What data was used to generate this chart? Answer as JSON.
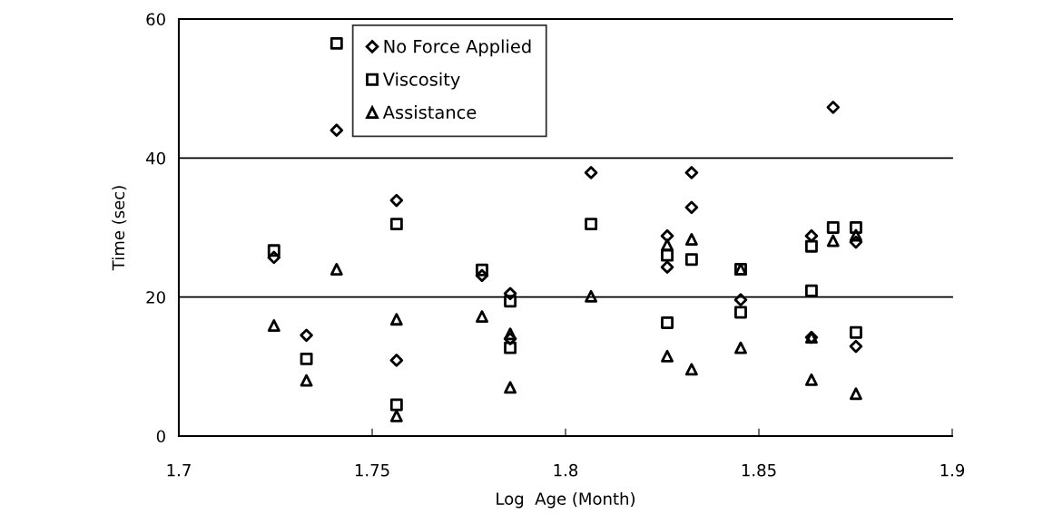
{
  "chart_data": {
    "type": "scatter",
    "xlabel": "Log  Age (Month)",
    "ylabel": "Time (sec)",
    "xlim": [
      1.7,
      1.9
    ],
    "xticks": [
      1.7,
      1.75,
      1.8,
      1.85,
      1.9
    ],
    "ylim": [
      0,
      60
    ],
    "yticks": [
      0,
      20,
      40,
      60
    ],
    "grid": "y",
    "legend": "top",
    "series": [
      {
        "name": "No Force Applied",
        "color": "#000000",
        "marker": "diamond",
        "x": [
          1.7246,
          1.733,
          1.7408,
          1.7563,
          1.7563,
          1.7784,
          1.7857,
          1.7857,
          1.8066,
          1.8263,
          1.8263,
          1.8326,
          1.8326,
          1.8453,
          1.8636,
          1.8636,
          1.8692,
          1.8751,
          1.8751
        ],
        "values": [
          25.7,
          14.5,
          44.0,
          33.9,
          10.9,
          23.1,
          20.5,
          14.0,
          37.9,
          28.8,
          24.3,
          37.9,
          32.9,
          19.6,
          28.8,
          14.2,
          47.3,
          27.9,
          12.9
        ]
      },
      {
        "name": "Viscosity",
        "color": "#000000",
        "marker": "square",
        "x": [
          1.7246,
          1.733,
          1.7408,
          1.7563,
          1.7563,
          1.7784,
          1.7857,
          1.7857,
          1.8066,
          1.8263,
          1.8263,
          1.8326,
          1.8453,
          1.8453,
          1.8636,
          1.8636,
          1.8692,
          1.8751,
          1.8751
        ],
        "values": [
          26.7,
          11.1,
          56.5,
          30.5,
          4.5,
          23.9,
          19.4,
          12.7,
          30.5,
          26.0,
          16.3,
          25.4,
          24.0,
          17.8,
          27.3,
          20.9,
          30.0,
          30.0,
          14.9
        ]
      },
      {
        "name": "Assistance",
        "color": "#000000",
        "marker": "triangle",
        "x": [
          1.7246,
          1.733,
          1.7408,
          1.7563,
          1.7563,
          1.7784,
          1.7857,
          1.7857,
          1.8066,
          1.8263,
          1.8263,
          1.8326,
          1.8326,
          1.8453,
          1.8453,
          1.8636,
          1.8636,
          1.8692,
          1.8751,
          1.8751
        ],
        "values": [
          15.9,
          8.0,
          24.0,
          16.8,
          2.9,
          17.2,
          14.7,
          7.0,
          20.1,
          27.5,
          11.5,
          28.3,
          9.6,
          24.0,
          12.7,
          14.2,
          8.1,
          28.1,
          28.9,
          6.1
        ]
      }
    ]
  }
}
